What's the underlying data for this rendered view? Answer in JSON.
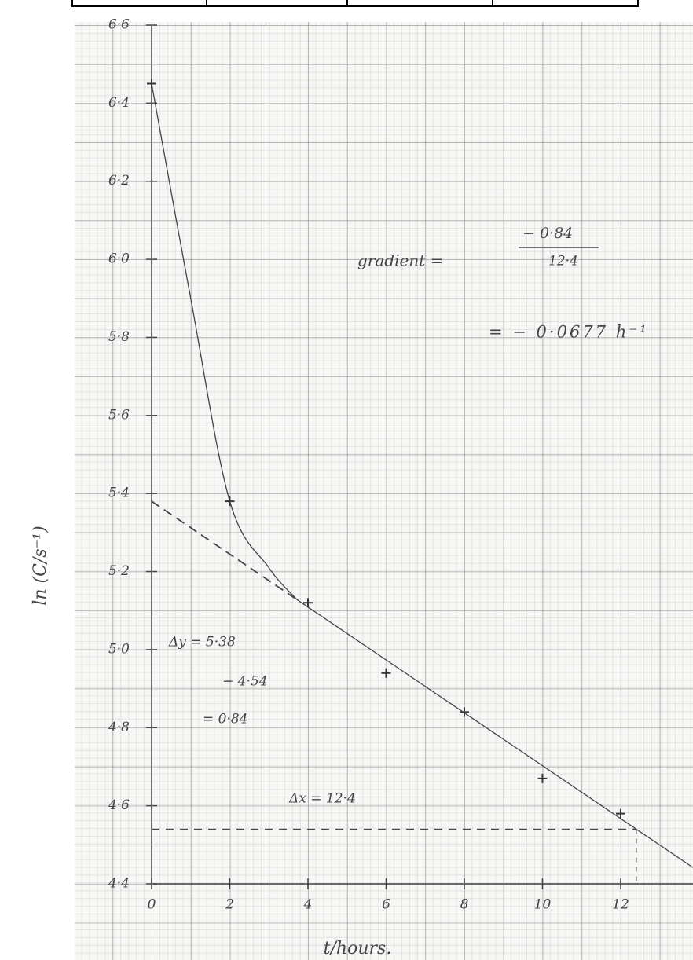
{
  "chart_data": {
    "type": "scatter",
    "x": [
      0,
      2,
      4,
      6,
      8,
      10,
      12
    ],
    "values": [
      6.45,
      5.38,
      5.12,
      4.94,
      4.84,
      4.67,
      4.58
    ],
    "color": "#333333",
    "curve": {
      "x": [
        0,
        1,
        2,
        3,
        3.7
      ],
      "values": [
        6.45,
        5.9,
        5.38,
        5.21,
        5.13
      ]
    },
    "tangent": {
      "x": [
        0,
        12.4
      ],
      "values": [
        5.38,
        4.54
      ]
    },
    "xlim": [
      0,
      13.85
    ],
    "ylim": [
      4.4,
      6.6
    ],
    "xticks": [
      0,
      2,
      4,
      6,
      8,
      10,
      12
    ],
    "yticks": [
      {
        "value": 4.4,
        "label": "4·4"
      },
      {
        "value": 4.6,
        "label": "4·6"
      },
      {
        "value": 4.8,
        "label": "4·8"
      },
      {
        "value": 5.0,
        "label": "5·0"
      },
      {
        "value": 5.2,
        "label": "5·2"
      },
      {
        "value": 5.4,
        "label": "5·4"
      },
      {
        "value": 5.6,
        "label": "5·6"
      },
      {
        "value": 5.8,
        "label": "5·8"
      },
      {
        "value": 6.0,
        "label": "6·0"
      },
      {
        "value": 6.2,
        "label": "6·2"
      },
      {
        "value": 6.4,
        "label": "6·4"
      },
      {
        "value": 6.6,
        "label": "6·6"
      }
    ],
    "xlabel": "t/hours.",
    "ylabel": "ln (C/s⁻¹)",
    "annotations": {
      "gradient": "gradient =",
      "numerator": "− 0·84",
      "denominator": "12·4",
      "result": "= −  0·0677 h⁻¹",
      "dy": "Δy = 5·38",
      "dy_minus": "− 4·54",
      "dy_result": "= 0·84",
      "dx": "Δx = 12·4"
    }
  }
}
